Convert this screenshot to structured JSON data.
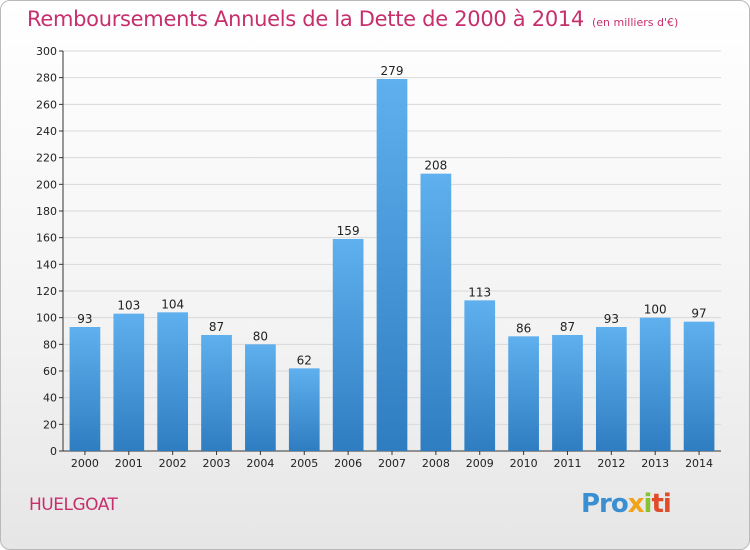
{
  "header": {
    "title": "Remboursements Annuels de la Dette de 2000 à 2014",
    "unit": "(en milliers d'€)"
  },
  "footer": {
    "city": "HUELGOAT",
    "logo_parts": [
      "Pro",
      "x",
      "i",
      "ti"
    ]
  },
  "colors": {
    "title": "#c62f6c",
    "bar_top": "#5fb0ee",
    "bar_bottom": "#2f7dc1",
    "grid": "#d9d9d9",
    "axis": "#333333"
  },
  "chart_data": {
    "type": "bar",
    "title": "Remboursements Annuels de la Dette de 2000 à 2014",
    "subtitle": "(en milliers d'€)",
    "categories": [
      "2000",
      "2001",
      "2002",
      "2003",
      "2004",
      "2005",
      "2006",
      "2007",
      "2008",
      "2009",
      "2010",
      "2011",
      "2012",
      "2013",
      "2014"
    ],
    "values": [
      93,
      103,
      104,
      87,
      80,
      62,
      159,
      279,
      208,
      113,
      86,
      87,
      93,
      100,
      97
    ],
    "data_labels": [
      "93",
      "103",
      "104",
      "87",
      "80",
      "62",
      "159",
      "279",
      "208",
      "113",
      "86",
      "87",
      "93",
      "100",
      "97"
    ],
    "ylim": [
      0,
      300
    ],
    "yticks": [
      0,
      20,
      40,
      60,
      80,
      100,
      120,
      140,
      160,
      180,
      200,
      220,
      240,
      260,
      280,
      300
    ],
    "grid": true,
    "legend": "none"
  }
}
